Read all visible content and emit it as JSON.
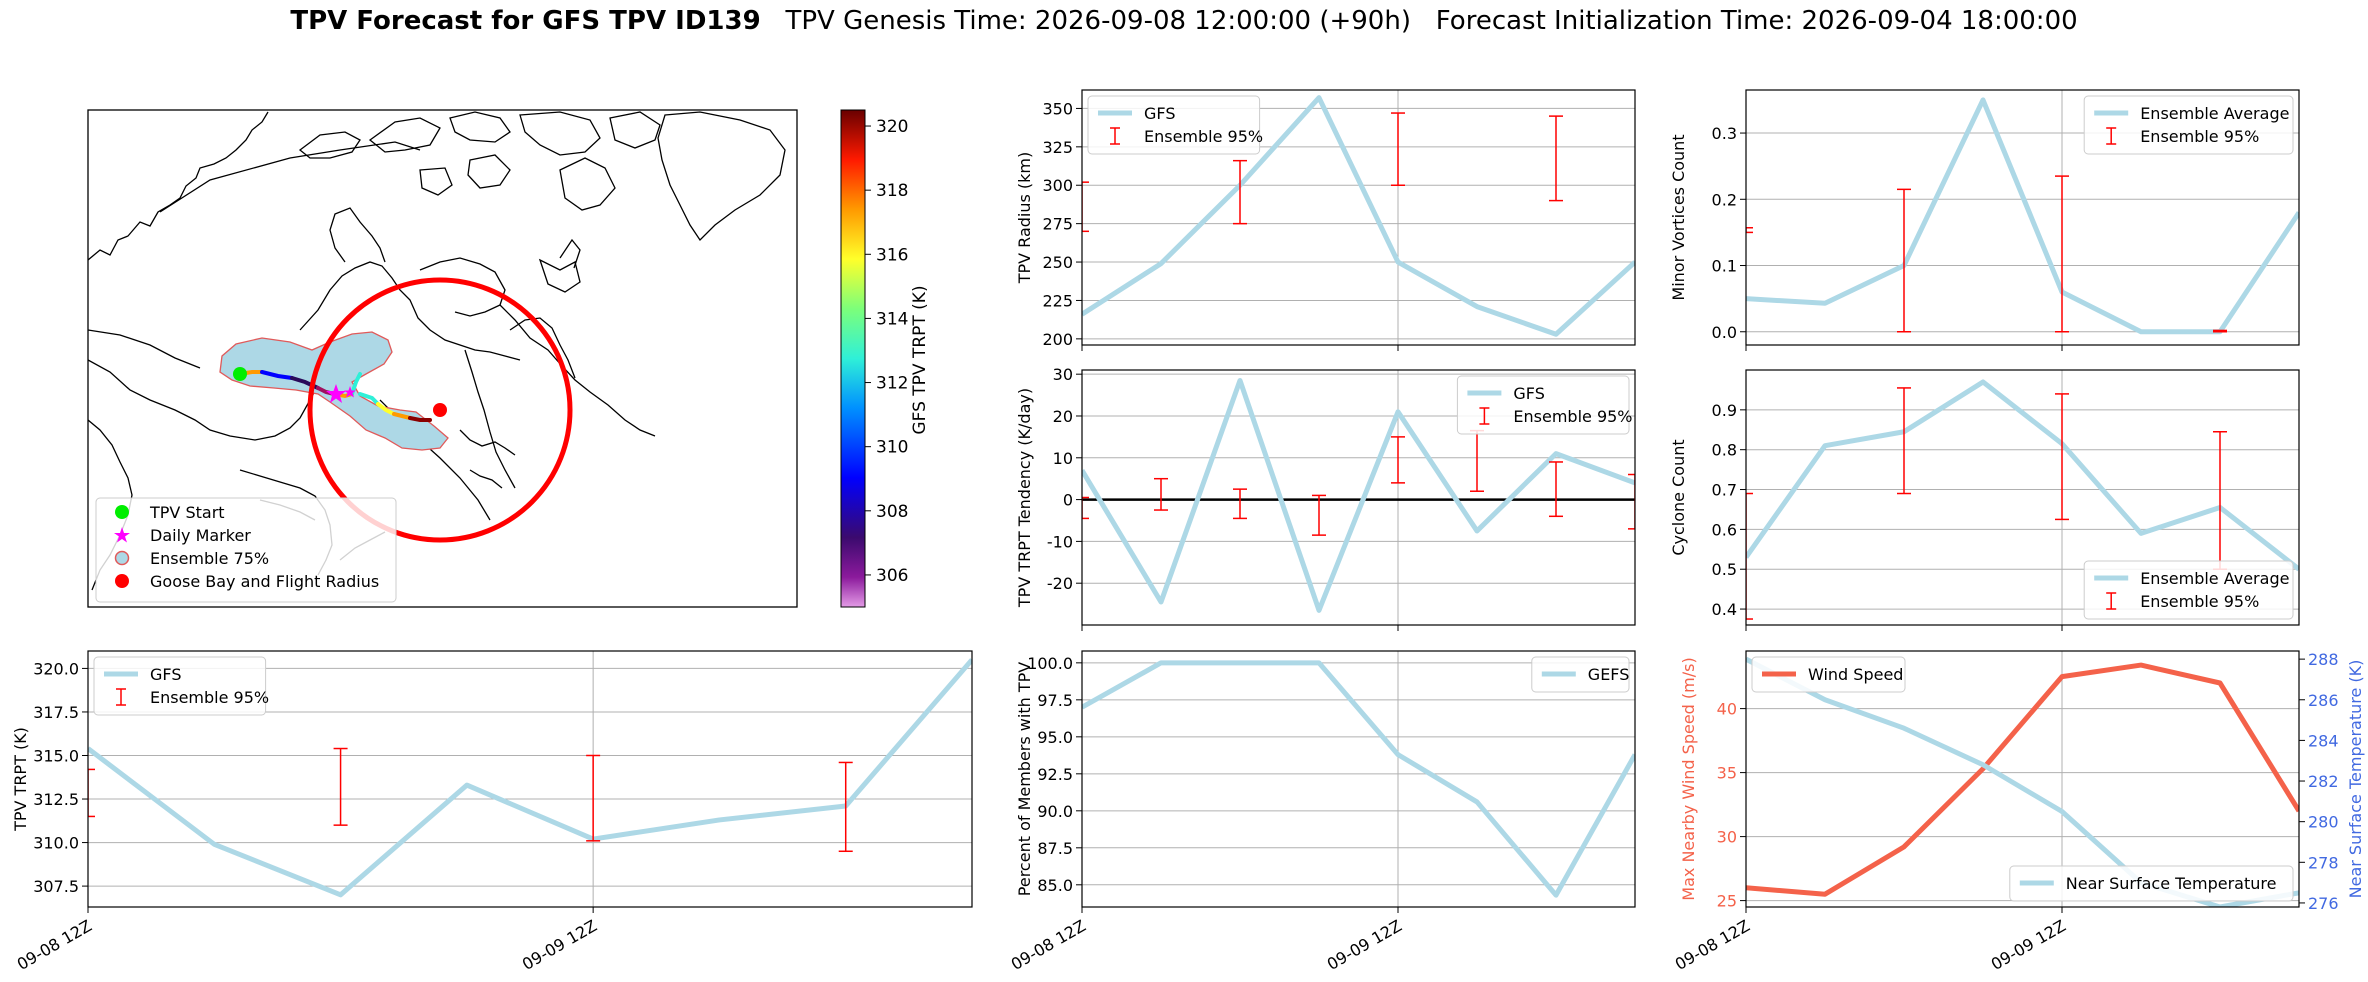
{
  "title": {
    "bold": "TPV Forecast for GFS TPV ID139",
    "genesis": "TPV Genesis Time: 2026-09-08 12:00:00 (+90h)",
    "init": "Forecast Initialization Time: 2026-09-04 18:00:00"
  },
  "map": {
    "colorbar": {
      "label": "GFS TPV TRPT (K)",
      "ticks": [
        306,
        308,
        310,
        312,
        314,
        316,
        318,
        320
      ],
      "range": [
        305,
        320.5
      ]
    },
    "legend": [
      "TPV Start",
      "Daily Marker",
      "Ensemble 75%",
      "Goose Bay and Flight Radius"
    ],
    "colors": {
      "start": "#00ee00",
      "marker": "#ff00ff",
      "ensemble_fill": "#add8e6",
      "ensemble_edge": "#e05a5a",
      "goose": "#ff0000"
    }
  },
  "x_ticks": [
    "09-08 12Z",
    "09-09 12Z"
  ],
  "colors": {
    "gfs": "#add8e6",
    "error": "#ff0000",
    "wind": "#f4624a",
    "temp_axis": "#4169e1"
  },
  "chart_data": [
    {
      "id": "radius",
      "type": "line",
      "ylabel": "TPV Radius (km)",
      "x": [
        0,
        0.5,
        1,
        1.5,
        2,
        2.5,
        3,
        3.5
      ],
      "series": [
        {
          "name": "GFS",
          "values": [
            216,
            249,
            300,
            357,
            250,
            221,
            203,
            250
          ]
        }
      ],
      "error_bars": {
        "name": "Ensemble 95%",
        "x": [
          0,
          1,
          2,
          3
        ],
        "low": [
          270,
          275,
          300,
          290
        ],
        "high": [
          302,
          316,
          347,
          345
        ]
      },
      "ylim": [
        196,
        362
      ],
      "yticks": [
        200,
        225,
        250,
        275,
        300,
        325,
        350
      ],
      "legend": "upper left"
    },
    {
      "id": "minor",
      "type": "line",
      "ylabel": "Minor Vortices Count",
      "x": [
        0,
        0.5,
        1,
        1.5,
        2,
        2.5,
        3,
        3.5
      ],
      "series": [
        {
          "name": "Ensemble Average",
          "values": [
            0.05,
            0.043,
            0.1,
            0.35,
            0.06,
            0,
            0,
            0.18
          ]
        }
      ],
      "error_bars": {
        "name": "Ensemble 95%",
        "x": [
          0,
          1,
          2,
          3
        ],
        "low": [
          0.15,
          0,
          0,
          0
        ],
        "high": [
          0.157,
          0.215,
          0.235,
          0.002
        ]
      },
      "ylim": [
        -0.02,
        0.365
      ],
      "yticks": [
        0.0,
        0.1,
        0.2,
        0.3
      ],
      "legend": "upper right"
    },
    {
      "id": "tendency",
      "type": "line",
      "ylabel": "TPV TRPT Tendency (K/day)",
      "x": [
        0,
        0.5,
        1,
        1.5,
        2,
        2.5,
        3,
        3.5
      ],
      "series": [
        {
          "name": "GFS",
          "values": [
            7,
            -24.5,
            28.5,
            -26.5,
            21,
            -7.5,
            11,
            4
          ]
        }
      ],
      "error_bars": {
        "name": "Ensemble 95%",
        "x": [
          0,
          0.5,
          1,
          1.5,
          2,
          2.5,
          3,
          3.5
        ],
        "low": [
          -4.5,
          -2.5,
          -4.5,
          -8.5,
          4,
          2,
          -4,
          -7
        ],
        "high": [
          0.5,
          5,
          2.5,
          1,
          15,
          16.5,
          9,
          6
        ]
      },
      "ylim": [
        -30,
        31
      ],
      "yticks": [
        -20,
        -10,
        0,
        10,
        20,
        30
      ],
      "zero_line": true,
      "legend": "upper right"
    },
    {
      "id": "cyclone",
      "type": "line",
      "ylabel": "Cyclone Count",
      "x": [
        0,
        0.5,
        1,
        1.5,
        2,
        2.5,
        3,
        3.5
      ],
      "series": [
        {
          "name": "Ensemble Average",
          "values": [
            0.53,
            0.81,
            0.845,
            0.97,
            0.815,
            0.59,
            0.655,
            0.5
          ]
        }
      ],
      "error_bars": {
        "name": "Ensemble 95%",
        "x": [
          0,
          1,
          2,
          3
        ],
        "low": [
          0.375,
          0.69,
          0.625,
          0.5
        ],
        "high": [
          0.69,
          0.955,
          0.94,
          0.845
        ]
      },
      "ylim": [
        0.36,
        1.0
      ],
      "yticks": [
        0.4,
        0.5,
        0.6,
        0.7,
        0.8,
        0.9
      ],
      "legend": "lower right"
    },
    {
      "id": "trpt",
      "type": "line",
      "ylabel": "TPV TRPT (K)",
      "x": [
        0,
        0.5,
        1,
        1.5,
        2,
        2.5,
        3,
        3.5
      ],
      "series": [
        {
          "name": "GFS",
          "values": [
            315.4,
            309.9,
            307.0,
            313.3,
            310.2,
            311.3,
            312.1,
            320.5
          ]
        }
      ],
      "error_bars": {
        "name": "Ensemble 95%",
        "x": [
          0,
          1,
          2,
          3
        ],
        "low": [
          311.5,
          311.0,
          310.1,
          309.5
        ],
        "high": [
          314.2,
          315.4,
          315.0,
          314.6
        ]
      },
      "ylim": [
        306.3,
        321.0
      ],
      "yticks": [
        307.5,
        310.0,
        312.5,
        315.0,
        317.5,
        320.0
      ],
      "legend": "upper left"
    },
    {
      "id": "members",
      "type": "line",
      "ylabel": "Percent of Members with TPV",
      "x": [
        0,
        0.5,
        1,
        1.5,
        2,
        2.5,
        3,
        3.5
      ],
      "series": [
        {
          "name": "GEFS",
          "values": [
            97,
            100,
            100,
            100,
            93.8,
            90.6,
            84.3,
            93.8
          ]
        }
      ],
      "ylim": [
        83.5,
        100.8
      ],
      "yticks": [
        85.0,
        87.5,
        90.0,
        92.5,
        95.0,
        97.5,
        100.0
      ],
      "legend": "upper right"
    },
    {
      "id": "wind_temp",
      "type": "line",
      "ylabel": "Max Nearby Wind Speed (m/s)",
      "ylabel_right": "Near Surface Temperature (K)",
      "x": [
        0,
        0.5,
        1,
        1.5,
        2,
        2.5,
        3,
        3.5
      ],
      "series": [
        {
          "name": "Wind Speed",
          "axis": "left",
          "values": [
            26.0,
            25.5,
            29.2,
            35.3,
            42.5,
            43.4,
            42.0,
            32.0
          ]
        },
        {
          "name": "Near Surface Temperature",
          "axis": "right",
          "values": [
            288.0,
            286.0,
            284.6,
            282.8,
            280.5,
            277.0,
            275.8,
            276.5
          ]
        }
      ],
      "ylim": [
        24.5,
        44.5
      ],
      "yticks": [
        25,
        30,
        35,
        40
      ],
      "ylim_right": [
        275.8,
        288.4
      ],
      "yticks_right": [
        276,
        278,
        280,
        282,
        284,
        286,
        288
      ]
    }
  ]
}
